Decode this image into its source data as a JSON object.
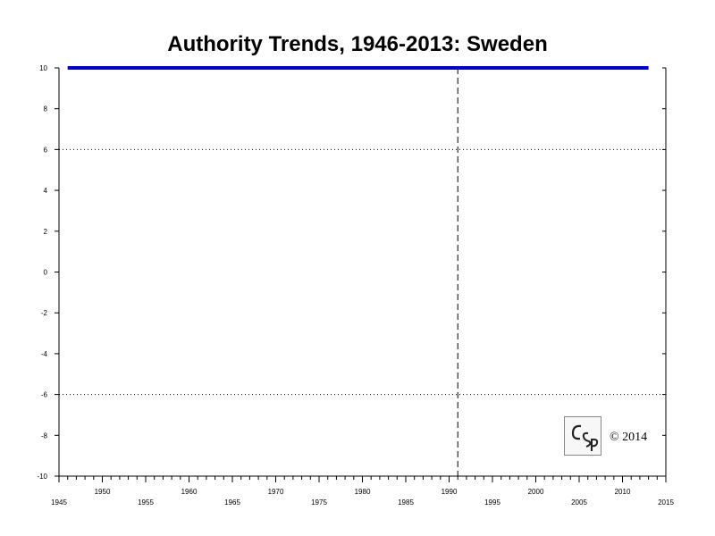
{
  "chart_data": {
    "type": "line",
    "title": "Authority Trends, 1946-2013: Sweden",
    "xlabel": "",
    "ylabel": "",
    "xlim": [
      1945,
      2015
    ],
    "ylim": [
      -10,
      10
    ],
    "x_ticks_lower": [
      "1945",
      "1955",
      "1965",
      "1975",
      "1985",
      "1995",
      "2005",
      "2015"
    ],
    "x_ticks_upper": [
      "1950",
      "1960",
      "1970",
      "1980",
      "1990",
      "2000",
      "2010"
    ],
    "y_ticks": [
      "10",
      "8",
      "6",
      "4",
      "2",
      "0",
      "-2",
      "-4",
      "-6",
      "-8",
      "-10"
    ],
    "reference_lines": [
      {
        "axis": "y",
        "value": 6,
        "style": "dotted"
      },
      {
        "axis": "y",
        "value": -6,
        "style": "dotted"
      }
    ],
    "event_lines": [
      {
        "axis": "x",
        "value": 1991,
        "style": "dashed"
      }
    ],
    "series": [
      {
        "color": "#0000c8",
        "x": [
          1946,
          2013
        ],
        "y": [
          10,
          10
        ]
      }
    ],
    "grid": false,
    "legend": "none"
  },
  "footer": {
    "copyright": "© 2014",
    "logo_text": "CSP"
  },
  "colors": {
    "series": "#0000c8",
    "axis": "#000000"
  }
}
